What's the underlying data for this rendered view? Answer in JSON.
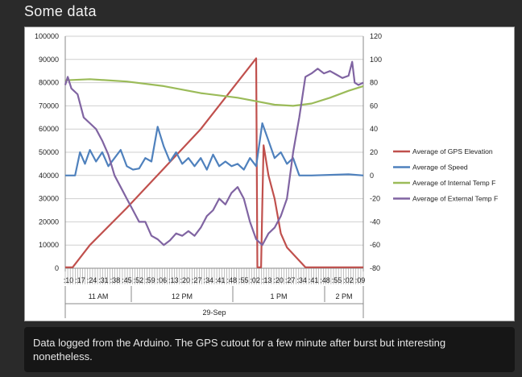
{
  "page": {
    "title": "Some data"
  },
  "caption": "Data logged from the Arduino. The GPS cutout for a few minute after burst but interesting nonetheless.",
  "chart_data": {
    "type": "line",
    "title": "",
    "xlabel": "29-Sep",
    "y_left": {
      "ticks": [
        "0",
        "10000",
        "20000",
        "30000",
        "40000",
        "50000",
        "60000",
        "70000",
        "80000",
        "90000",
        "100000"
      ],
      "min": 0,
      "max": 100000
    },
    "y_right": {
      "ticks": [
        "-80",
        "-60",
        "-40",
        "-20",
        "0",
        "20",
        "40",
        "60",
        "80",
        "100",
        "120"
      ],
      "min": -80,
      "max": 120
    },
    "x_minute_labels": [
      ":10",
      ":17",
      ":24",
      ":31",
      ":38",
      ":45",
      ":52",
      ":59",
      ":06",
      ":13",
      ":20",
      ":27",
      ":34",
      ":41",
      ":48",
      ":55",
      ":02",
      ":13",
      ":20",
      ":27",
      ":34",
      ":41",
      ":48",
      ":55",
      ":02",
      ":09"
    ],
    "x_hour_labels": [
      "11 AM",
      "12 PM",
      "1 PM",
      "2 PM"
    ],
    "x_range": [
      "10:10",
      "14:12"
    ],
    "grid": "horizontal",
    "legend_position": "right",
    "series": [
      {
        "name": "Average of GPS Elevation",
        "color": "#c0504d",
        "axis": "left",
        "x": [
          "10:10",
          "10:16",
          "10:30",
          "11:00",
          "11:30",
          "12:00",
          "12:45",
          "12:46",
          "12:49",
          "12:50",
          "12:51",
          "12:55",
          "13:00",
          "13:05",
          "13:10",
          "13:25",
          "14:12"
        ],
        "values": [
          400,
          400,
          10000,
          26000,
          43000,
          60000,
          90500,
          400,
          400,
          27000,
          53000,
          40000,
          30000,
          15000,
          9000,
          400,
          400
        ]
      },
      {
        "name": "Average of Speed",
        "color": "#4f81bd",
        "axis": "right",
        "x": [
          "10:10",
          "10:18",
          "10:22",
          "10:26",
          "10:30",
          "10:35",
          "10:40",
          "10:45",
          "10:50",
          "10:55",
          "11:00",
          "11:05",
          "11:10",
          "11:15",
          "11:20",
          "11:25",
          "11:30",
          "11:35",
          "11:40",
          "11:45",
          "11:50",
          "11:55",
          "12:00",
          "12:05",
          "12:10",
          "12:15",
          "12:20",
          "12:25",
          "12:30",
          "12:35",
          "12:40",
          "12:45",
          "12:50",
          "12:55",
          "13:00",
          "13:05",
          "13:10",
          "13:15",
          "13:20",
          "13:30",
          "14:00",
          "14:12"
        ],
        "values": [
          0,
          0,
          20,
          10,
          22,
          12,
          20,
          8,
          15,
          22,
          8,
          5,
          6,
          15,
          12,
          42,
          25,
          12,
          20,
          10,
          15,
          8,
          15,
          5,
          18,
          8,
          12,
          8,
          10,
          5,
          15,
          8,
          45,
          30,
          15,
          20,
          10,
          15,
          0,
          0,
          1,
          0
        ]
      },
      {
        "name": "Average of Internal Temp F",
        "color": "#9bbb59",
        "axis": "right",
        "x": [
          "10:10",
          "10:30",
          "11:00",
          "11:30",
          "12:00",
          "12:30",
          "13:00",
          "13:15",
          "13:30",
          "13:45",
          "14:00",
          "14:12"
        ],
        "values": [
          82,
          83,
          81,
          77,
          71,
          67,
          61,
          60,
          62,
          67,
          73,
          77
        ]
      },
      {
        "name": "Average of External Temp F",
        "color": "#8064a2",
        "axis": "right",
        "x": [
          "10:10",
          "10:12",
          "10:15",
          "10:20",
          "10:25",
          "10:30",
          "10:35",
          "10:40",
          "10:45",
          "10:50",
          "10:55",
          "11:00",
          "11:05",
          "11:10",
          "11:15",
          "11:20",
          "11:25",
          "11:30",
          "11:35",
          "11:40",
          "11:45",
          "11:50",
          "11:55",
          "12:00",
          "12:05",
          "12:10",
          "12:15",
          "12:20",
          "12:25",
          "12:30",
          "12:35",
          "12:40",
          "12:45",
          "12:50",
          "12:55",
          "13:00",
          "13:05",
          "13:10",
          "13:15",
          "13:20",
          "13:25",
          "13:30",
          "13:35",
          "13:40",
          "13:45",
          "13:50",
          "13:55",
          "14:00",
          "14:03",
          "14:05",
          "14:08",
          "14:12"
        ],
        "values": [
          78,
          85,
          75,
          70,
          50,
          45,
          40,
          30,
          18,
          0,
          -10,
          -20,
          -30,
          -40,
          -40,
          -52,
          -55,
          -60,
          -56,
          -50,
          -52,
          -48,
          -52,
          -45,
          -35,
          -30,
          -20,
          -25,
          -15,
          -10,
          -20,
          -40,
          -55,
          -60,
          -50,
          -45,
          -35,
          -20,
          20,
          50,
          85,
          88,
          92,
          88,
          90,
          87,
          84,
          86,
          98,
          80,
          78,
          80
        ]
      }
    ]
  }
}
